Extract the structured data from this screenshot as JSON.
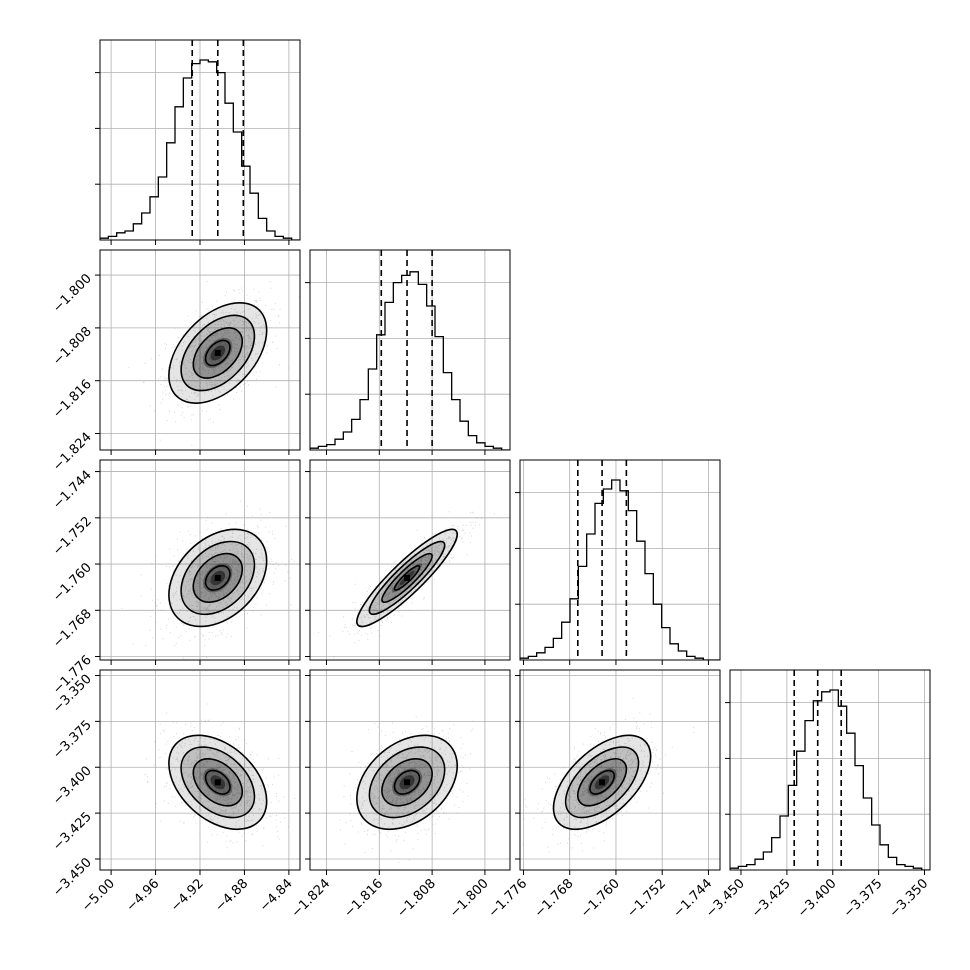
{
  "chart_data": {
    "type": "corner",
    "title": "",
    "parameters": [
      {
        "range": [
          -5.01,
          -4.83
        ],
        "ticks": [
          -5.0,
          -4.96,
          -4.92,
          -4.88,
          -4.84
        ],
        "tick_labels": [
          "−5.00",
          "−4.96",
          "−4.92",
          "−4.88",
          "−4.84"
        ],
        "mean": -4.904,
        "sd": 0.022,
        "quantiles": [
          -4.927,
          -4.904,
          -4.881
        ],
        "hist": [
          0.01,
          0.02,
          0.04,
          0.05,
          0.09,
          0.15,
          0.24,
          0.35,
          0.54,
          0.74,
          0.9,
          0.98,
          1.0,
          0.99,
          0.93,
          0.76,
          0.6,
          0.41,
          0.26,
          0.12,
          0.05,
          0.02,
          0.01,
          0.0
        ]
      },
      {
        "range": [
          -1.8265,
          -1.7962
        ],
        "ticks": [
          -1.824,
          -1.816,
          -1.808,
          -1.8
        ],
        "tick_labels": [
          "−1.824",
          "−1.816",
          "−1.808",
          "−1.800"
        ],
        "mean": -1.8118,
        "sd": 0.0038,
        "quantiles": [
          -1.8157,
          -1.8118,
          -1.808
        ],
        "hist": [
          0.01,
          0.02,
          0.03,
          0.06,
          0.1,
          0.17,
          0.28,
          0.45,
          0.64,
          0.82,
          0.93,
          0.97,
          0.99,
          0.92,
          0.8,
          0.63,
          0.43,
          0.28,
          0.16,
          0.08,
          0.04,
          0.02,
          0.01,
          0.0
        ]
      },
      {
        "range": [
          -1.7766,
          -1.742
        ],
        "ticks": [
          -1.776,
          -1.768,
          -1.76,
          -1.752,
          -1.744
        ],
        "tick_labels": [
          "−1.776",
          "−1.768",
          "−1.760",
          "−1.752",
          "−1.744"
        ],
        "mean": -1.7624,
        "sd": 0.0042,
        "quantiles": [
          -1.7666,
          -1.7624,
          -1.7582
        ],
        "hist": [
          0.01,
          0.02,
          0.04,
          0.07,
          0.12,
          0.21,
          0.34,
          0.52,
          0.7,
          0.87,
          0.95,
          1.0,
          0.94,
          0.83,
          0.66,
          0.48,
          0.31,
          0.18,
          0.09,
          0.05,
          0.02,
          0.01,
          0.0,
          0.0
        ]
      },
      {
        "range": [
          -3.456,
          -3.347
        ],
        "ticks": [
          -3.45,
          -3.425,
          -3.4,
          -3.375,
          -3.35
        ],
        "tick_labels": [
          "−3.450",
          "−3.425",
          "−3.400",
          "−3.375",
          "−3.350"
        ],
        "mean": -3.4082,
        "sd": 0.0128,
        "quantiles": [
          -3.421,
          -3.4082,
          -3.3954
        ],
        "hist": [
          0.01,
          0.02,
          0.03,
          0.06,
          0.1,
          0.18,
          0.3,
          0.47,
          0.66,
          0.83,
          0.94,
          0.99,
          1.0,
          0.91,
          0.76,
          0.58,
          0.4,
          0.25,
          0.14,
          0.07,
          0.03,
          0.02,
          0.01,
          0.0
        ]
      }
    ],
    "correlations": [
      [
        1.0,
        0.45,
        0.35,
        -0.4
      ],
      [
        0.45,
        1.0,
        0.9,
        0.35
      ],
      [
        0.35,
        0.9,
        1.0,
        0.55
      ],
      [
        -0.4,
        0.35,
        0.55,
        1.0
      ]
    ],
    "contour_levels_sigma": [
      0.5,
      1.0,
      1.5,
      2.0
    ],
    "grid": true,
    "colors": {
      "hist_line": "#000000",
      "quantile_line": "#000000",
      "grid": "#b0b0b0",
      "scatter": "#8c8c8c",
      "density": "#000000"
    }
  }
}
